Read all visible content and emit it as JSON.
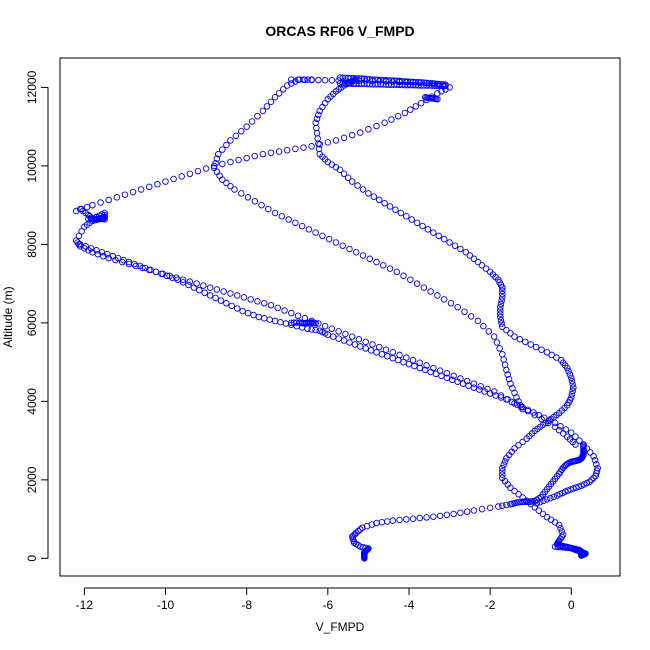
{
  "chart_data": {
    "type": "scatter",
    "title": "ORCAS RF06 V_FMPD",
    "xlabel": "V_FMPD",
    "ylabel": "Altitude (m)",
    "xlim": [
      -12.6,
      1.2
    ],
    "ylim": [
      -450,
      12750
    ],
    "xticks": [
      -12,
      -10,
      -8,
      -6,
      -4,
      -2,
      0
    ],
    "yticks": [
      0,
      2000,
      4000,
      6000,
      8000,
      10000,
      12000
    ],
    "grid": false,
    "legend": "none",
    "marker": "open-circle",
    "marker_color": "#0000ff",
    "series": [
      {
        "x": [
          -5.1,
          -5.1,
          -5.1,
          -5.1,
          -5.05,
          -5.0,
          -5.2,
          -5.35,
          -5.4,
          -5.3,
          -5.15,
          -4.8,
          -4.4,
          -3.9,
          -3.4,
          -2.9,
          -2.4,
          -1.8,
          -1.5,
          -1.35,
          -1.2,
          -1.05,
          -0.9,
          -0.75,
          -0.6,
          -0.45,
          -0.3,
          -0.2,
          -0.1,
          0.0,
          0.1,
          0.2,
          0.25,
          0.28,
          0.3,
          0.3,
          0.3,
          0.3
        ],
        "y": [
          0,
          50,
          100,
          150,
          200,
          250,
          300,
          400,
          550,
          650,
          780,
          900,
          960,
          1010,
          1060,
          1130,
          1220,
          1320,
          1380,
          1420,
          1440,
          1440,
          1460,
          1560,
          1760,
          1960,
          2160,
          2310,
          2410,
          2460,
          2480,
          2510,
          2550,
          2600,
          2640,
          2700,
          2800,
          2900
        ]
      },
      {
        "x": [
          0.3,
          0.3,
          0.25,
          0.2,
          0.1,
          0.0,
          -0.1,
          -0.25,
          -0.35,
          -0.3,
          -0.2,
          -0.3,
          -0.6,
          -0.9,
          -1.2,
          -1.5,
          -1.7,
          -1.7,
          -1.6,
          -1.4,
          -1.1,
          -0.9,
          -0.7,
          -0.5,
          -0.3,
          -0.1,
          0.0,
          0.05,
          0.0,
          -0.1,
          -0.25,
          -0.6,
          -1.0,
          -1.4,
          -1.7,
          -1.75,
          -1.75,
          -1.7,
          -1.7
        ],
        "y": [
          100,
          130,
          170,
          210,
          240,
          260,
          290,
          320,
          360,
          450,
          600,
          850,
          1050,
          1300,
          1550,
          1800,
          2050,
          2300,
          2550,
          2800,
          3050,
          3250,
          3400,
          3550,
          3700,
          3900,
          4100,
          4350,
          4600,
          4850,
          5050,
          5250,
          5450,
          5650,
          5900,
          6150,
          6400,
          6650,
          6900
        ]
      },
      {
        "x": [
          -0.4,
          -0.2,
          0.0,
          0.1,
          0.2,
          0.3,
          0.35,
          0.3,
          0.25,
          0.25
        ],
        "y": [
          300,
          280,
          260,
          220,
          180,
          140,
          120,
          100,
          90,
          70
        ]
      },
      {
        "x": [
          -1.7,
          -1.8,
          -2.0,
          -2.3,
          -2.6,
          -3.0,
          -3.4,
          -3.8,
          -4.2,
          -4.6,
          -5.0,
          -5.4,
          -5.7,
          -6.0,
          -6.2,
          -6.25,
          -6.3,
          -6.2,
          -6.0,
          -5.8,
          -5.6,
          -5.4,
          -5.3
        ],
        "y": [
          6900,
          7100,
          7300,
          7550,
          7800,
          8050,
          8300,
          8550,
          8800,
          9050,
          9300,
          9600,
          9900,
          10100,
          10300,
          10700,
          11100,
          11400,
          11700,
          11900,
          12050,
          12150,
          12200
        ]
      },
      {
        "x": [
          -1.2,
          -1.35,
          -1.5,
          -1.6,
          -1.7,
          -1.9,
          -2.3,
          -2.8,
          -3.3,
          -3.8,
          -4.3,
          -4.8,
          -5.3,
          -5.8,
          -6.3,
          -6.8,
          -7.3,
          -7.8,
          -8.3,
          -8.6,
          -8.8,
          -8.7,
          -8.4,
          -8.0,
          -7.6,
          -7.3,
          -7.0,
          -6.7,
          -6.4
        ],
        "y": [
          3800,
          4100,
          4450,
          4800,
          5200,
          5650,
          6050,
          6400,
          6700,
          7000,
          7300,
          7550,
          7800,
          8050,
          8300,
          8550,
          8800,
          9100,
          9400,
          9650,
          9950,
          10300,
          10650,
          11000,
          11400,
          11750,
          12050,
          12200,
          12200
        ]
      },
      {
        "x": [
          -6.9,
          -6.4,
          -5.9,
          -5.4,
          -4.9,
          -4.4,
          -3.9,
          -3.4,
          -3.0,
          -3.3,
          -3.7,
          -4.1,
          -4.6,
          -5.2,
          -5.8,
          -6.4,
          -7.0,
          -7.6,
          -8.2,
          -8.8,
          -9.4,
          -10.0,
          -10.6,
          -11.2,
          -11.8,
          -12.2
        ],
        "y": [
          12200,
          12190,
          12180,
          12170,
          12160,
          12150,
          12130,
          12100,
          12000,
          11850,
          11600,
          11350,
          11100,
          10850,
          10650,
          10500,
          10400,
          10300,
          10150,
          10000,
          9800,
          9600,
          9400,
          9200,
          9000,
          8850
        ]
      },
      {
        "x": [
          -12.1,
          -11.9,
          -11.8,
          -11.6,
          -11.5,
          -11.6,
          -11.8,
          -12.0,
          -12.2,
          -12.1,
          -11.8,
          -11.4,
          -10.9,
          -10.4,
          -9.9,
          -9.4,
          -8.9,
          -8.4,
          -7.9,
          -7.4,
          -6.9,
          -6.4,
          -5.9,
          -5.4,
          -4.9,
          -4.4,
          -3.9,
          -3.4,
          -2.9,
          -2.4,
          -1.9,
          -1.4,
          -0.9,
          -0.4,
          -0.1,
          0.1
        ],
        "y": [
          8900,
          8750,
          8650,
          8650,
          8700,
          8650,
          8600,
          8450,
          8100,
          7950,
          7800,
          7650,
          7500,
          7350,
          7200,
          7050,
          6900,
          6750,
          6600,
          6450,
          6250,
          6050,
          5850,
          5650,
          5450,
          5250,
          5050,
          4850,
          4650,
          4450,
          4250,
          3950,
          3650,
          3350,
          3100,
          2900
        ]
      },
      {
        "x": [
          -12.1,
          -11.7,
          -11.3,
          -10.9,
          -10.5,
          -10.1,
          -9.7,
          -9.3,
          -8.9,
          -8.5,
          -8.1,
          -7.7,
          -7.3,
          -6.9,
          -6.5,
          -6.2,
          -6.0,
          -5.6,
          -5.2,
          -4.8,
          -4.4,
          -4.0,
          -3.6,
          -3.2,
          -2.8,
          -2.4,
          -2.0,
          -1.6,
          -1.2,
          -0.8,
          -0.4,
          0.0,
          0.3,
          0.55,
          0.65,
          0.6,
          0.45,
          0.25,
          0.05,
          -0.15,
          -0.35,
          -0.6,
          -0.85
        ],
        "y": [
          8000,
          7850,
          7700,
          7550,
          7400,
          7250,
          7100,
          6900,
          6700,
          6500,
          6300,
          6150,
          6050,
          5950,
          5850,
          5800,
          5700,
          5550,
          5400,
          5250,
          5100,
          4950,
          4800,
          4650,
          4500,
          4350,
          4200,
          4050,
          3850,
          3650,
          3450,
          3200,
          2900,
          2600,
          2300,
          2100,
          1950,
          1850,
          1780,
          1700,
          1600,
          1500,
          1400
        ]
      },
      {
        "x": [
          -6.9,
          -6.7,
          -6.6,
          -6.5,
          -6.4,
          -6.3
        ],
        "y": [
          6000,
          6010,
          5990,
          6000,
          6010,
          5990
        ]
      },
      {
        "x": [
          -11.9,
          -11.7,
          -11.6,
          -11.5,
          -11.5,
          -11.7
        ],
        "y": [
          8650,
          8650,
          8660,
          8640,
          8800,
          8700
        ]
      },
      {
        "x": [
          -5.7,
          -5.5,
          -5.3,
          -5.1,
          -4.9,
          -4.7,
          -4.5,
          -4.3,
          -4.1,
          -3.9,
          -3.7,
          -3.5,
          -3.3,
          -3.1
        ],
        "y": [
          12250,
          12240,
          12230,
          12220,
          12200,
          12190,
          12180,
          12170,
          12150,
          12140,
          12130,
          12110,
          12090,
          12070
        ]
      },
      {
        "x": [
          -5.7,
          -5.5,
          -5.3,
          -5.1,
          -4.9,
          -4.7,
          -4.5,
          -4.3,
          -4.1,
          -3.9,
          -3.7,
          -3.5,
          -3.3,
          -3.1
        ],
        "y": [
          12100,
          12100,
          12090,
          12090,
          12080,
          12080,
          12070,
          12070,
          12060,
          12060,
          12050,
          12050,
          12040,
          12040
        ]
      },
      {
        "x": [
          -3.6,
          -3.5,
          -3.4,
          -3.3
        ],
        "y": [
          11750,
          11730,
          11720,
          11700
        ]
      }
    ]
  }
}
